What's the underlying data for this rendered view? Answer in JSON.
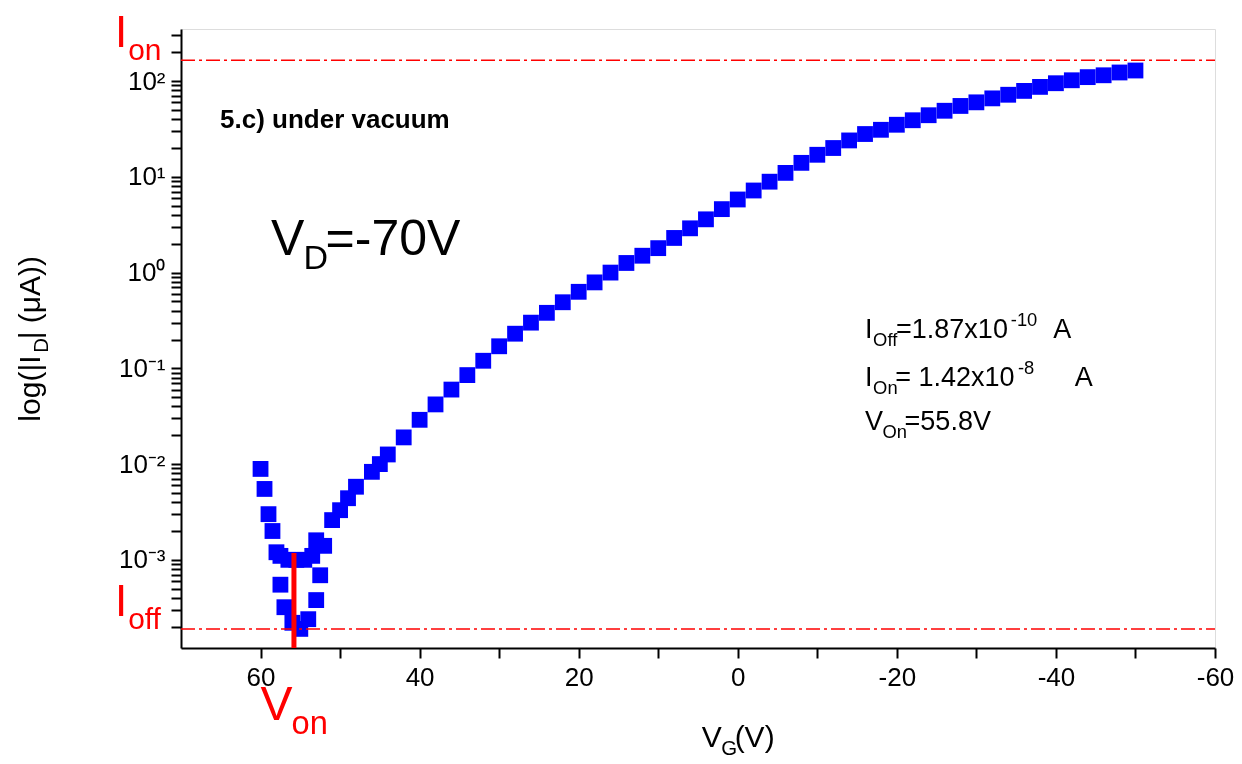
{
  "chart_data": {
    "type": "scatter",
    "xlabel": "V$_{G}$(V)",
    "ylabel": "log(|I$_{D}$| (μA))",
    "xlim": [
      70,
      -60
    ],
    "xticks": [
      60,
      40,
      20,
      0,
      -20,
      -40,
      -60,
      {
        "value": 50,
        "label": null
      },
      {
        "value": 30,
        "label": null
      },
      {
        "value": 10,
        "label": null
      },
      {
        "value": -10,
        "label": null
      },
      {
        "value": -30,
        "label": null
      },
      {
        "value": -50,
        "label": null
      }
    ],
    "log": "y",
    "ylim": [
      0.00012,
      350
    ],
    "yticks": [
      {
        "value": 0.001,
        "label": "10⁻³"
      },
      {
        "value": 0.01,
        "label": "10⁻²"
      },
      {
        "value": 0.1,
        "label": "10⁻¹"
      },
      {
        "value": 1,
        "label": "10⁰"
      },
      {
        "value": 10,
        "label": "10¹"
      },
      {
        "value": 100,
        "label": "10²"
      },
      {
        "value": 0.0002,
        "label": null
      },
      {
        "value": 0.0003,
        "label": null
      },
      {
        "value": 0.0004,
        "label": null
      },
      {
        "value": 0.0005,
        "label": null
      },
      {
        "value": 0.0006,
        "label": null
      },
      {
        "value": 0.0007,
        "label": null
      },
      {
        "value": 0.0008,
        "label": null
      },
      {
        "value": 0.0009,
        "label": null
      },
      {
        "value": 0.002,
        "label": null
      },
      {
        "value": 0.003,
        "label": null
      },
      {
        "value": 0.004,
        "label": null
      },
      {
        "value": 0.005,
        "label": null
      },
      {
        "value": 0.006,
        "label": null
      },
      {
        "value": 0.007,
        "label": null
      },
      {
        "value": 0.008,
        "label": null
      },
      {
        "value": 0.009,
        "label": null
      },
      {
        "value": 0.02,
        "label": null
      },
      {
        "value": 0.03,
        "label": null
      },
      {
        "value": 0.04,
        "label": null
      },
      {
        "value": 0.05,
        "label": null
      },
      {
        "value": 0.06,
        "label": null
      },
      {
        "value": 0.07,
        "label": null
      },
      {
        "value": 0.08,
        "label": null
      },
      {
        "value": 0.09,
        "label": null
      },
      {
        "value": 0.2,
        "label": null
      },
      {
        "value": 0.3,
        "label": null
      },
      {
        "value": 0.4,
        "label": null
      },
      {
        "value": 0.5,
        "label": null
      },
      {
        "value": 0.6,
        "label": null
      },
      {
        "value": 0.7,
        "label": null
      },
      {
        "value": 0.8,
        "label": null
      },
      {
        "value": 0.9,
        "label": null
      },
      {
        "value": 2,
        "label": null
      },
      {
        "value": 3,
        "label": null
      },
      {
        "value": 4,
        "label": null
      },
      {
        "value": 5,
        "label": null
      },
      {
        "value": 6,
        "label": null
      },
      {
        "value": 7,
        "label": null
      },
      {
        "value": 8,
        "label": null
      },
      {
        "value": 9,
        "label": null
      },
      {
        "value": 20,
        "label": null
      },
      {
        "value": 30,
        "label": null
      },
      {
        "value": 40,
        "label": null
      },
      {
        "value": 50,
        "label": null
      },
      {
        "value": 60,
        "label": null
      },
      {
        "value": 70,
        "label": null
      },
      {
        "value": 80,
        "label": null
      },
      {
        "value": 90,
        "label": null
      },
      {
        "value": 200,
        "label": null
      },
      {
        "value": 300,
        "label": null
      }
    ],
    "grid": false,
    "marker": "square",
    "series": [
      {
        "color": "#0000ff",
        "x": [
          60,
          59.5,
          59,
          58.5,
          58,
          57.5,
          57,
          56,
          55,
          54,
          53,
          52.5,
          52,
          51,
          50,
          49,
          48,
          46,
          45,
          44,
          42,
          40,
          38,
          36,
          34,
          32,
          30,
          28,
          26,
          24,
          22,
          20,
          18,
          16,
          14,
          12,
          10,
          8,
          6,
          4,
          2,
          0,
          -2,
          -4,
          -6,
          -8,
          -10,
          -12,
          -14,
          -16,
          -18,
          -20,
          -22,
          -24,
          -26,
          -28,
          -30,
          -32,
          -34,
          -36,
          -38,
          -40,
          -42,
          -44,
          -46,
          -48,
          -50,
          57.5,
          56.5,
          55.5,
          54.5,
          53.5,
          53
        ],
        "values": [
          0.0089,
          0.0055,
          0.003,
          0.002,
          0.0012,
          0.00055,
          0.00032,
          0.00022,
          0.00019,
          0.00024,
          0.00038,
          0.00069,
          0.0014,
          0.0026,
          0.0033,
          0.0044,
          0.0058,
          0.0083,
          0.01,
          0.0126,
          0.019,
          0.029,
          0.042,
          0.06,
          0.085,
          0.12,
          0.17,
          0.23,
          0.3,
          0.38,
          0.49,
          0.63,
          0.79,
          1.0,
          1.26,
          1.5,
          1.8,
          2.3,
          2.9,
          3.6,
          4.6,
          5.8,
          7.2,
          8.9,
          11,
          14,
          17,
          20,
          24,
          28,
          31,
          35,
          39,
          44,
          49,
          55,
          60,
          66,
          72,
          79,
          87,
          95,
          102,
          110,
          115,
          123,
          129,
          0.0011,
          0.001,
          0.001,
          0.001,
          0.0011,
          0.0016
        ]
      }
    ],
    "ref_lines": [
      {
        "axis": "y",
        "value": 165,
        "label": "I$_{on}$",
        "color": "#ff0000",
        "line_style": "dashed"
      },
      {
        "axis": "y",
        "value": 0.00019,
        "label": "I$_{off}$",
        "color": "#ff0000",
        "line_style": "dashed"
      },
      {
        "axis": "x",
        "value": 55.8,
        "label": "V$_{on}$",
        "color": "#ff0000",
        "line_style": "solid"
      }
    ],
    "annotations": [
      "5.c) under vacuum",
      "V$_{D}$=-70V",
      "I$_{Off}$=1.87x10$^{-10}$ A",
      "I$_{On}$= 1.42x10$^{-8}$   A",
      "V$_{On}$=55.8V"
    ]
  }
}
